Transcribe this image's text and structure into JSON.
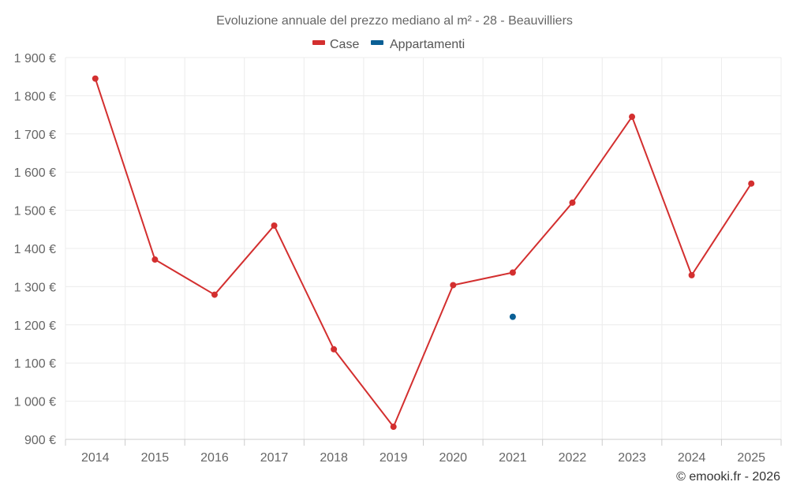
{
  "chart_data": {
    "type": "line",
    "title": "Evoluzione annuale del prezzo mediano al m² - 28 - Beauvilliers",
    "x": [
      "2014",
      "2015",
      "2016",
      "2017",
      "2018",
      "2019",
      "2020",
      "2021",
      "2022",
      "2023",
      "2024",
      "2025"
    ],
    "series": [
      {
        "name": "Case",
        "color": "#d32f2f",
        "values": [
          1845,
          1371,
          1279,
          1460,
          1136,
          933,
          1304,
          1337,
          1520,
          1745,
          1330,
          1570
        ]
      },
      {
        "name": "Appartamenti",
        "color": "#0a5f95",
        "values": [
          null,
          null,
          null,
          null,
          null,
          null,
          null,
          1221,
          null,
          null,
          null,
          null
        ]
      }
    ],
    "ylim": [
      900,
      1900
    ],
    "yticks": [
      900,
      1000,
      1100,
      1200,
      1300,
      1400,
      1500,
      1600,
      1700,
      1800,
      1900
    ],
    "ytick_labels": [
      "900 €",
      "1 000 €",
      "1 100 €",
      "1 200 €",
      "1 300 €",
      "1 400 €",
      "1 500 €",
      "1 600 €",
      "1 700 €",
      "1 800 €",
      "1 900 €"
    ],
    "legend_position": "top-center",
    "grid": true
  },
  "credit": "© emooki.fr - 2026"
}
